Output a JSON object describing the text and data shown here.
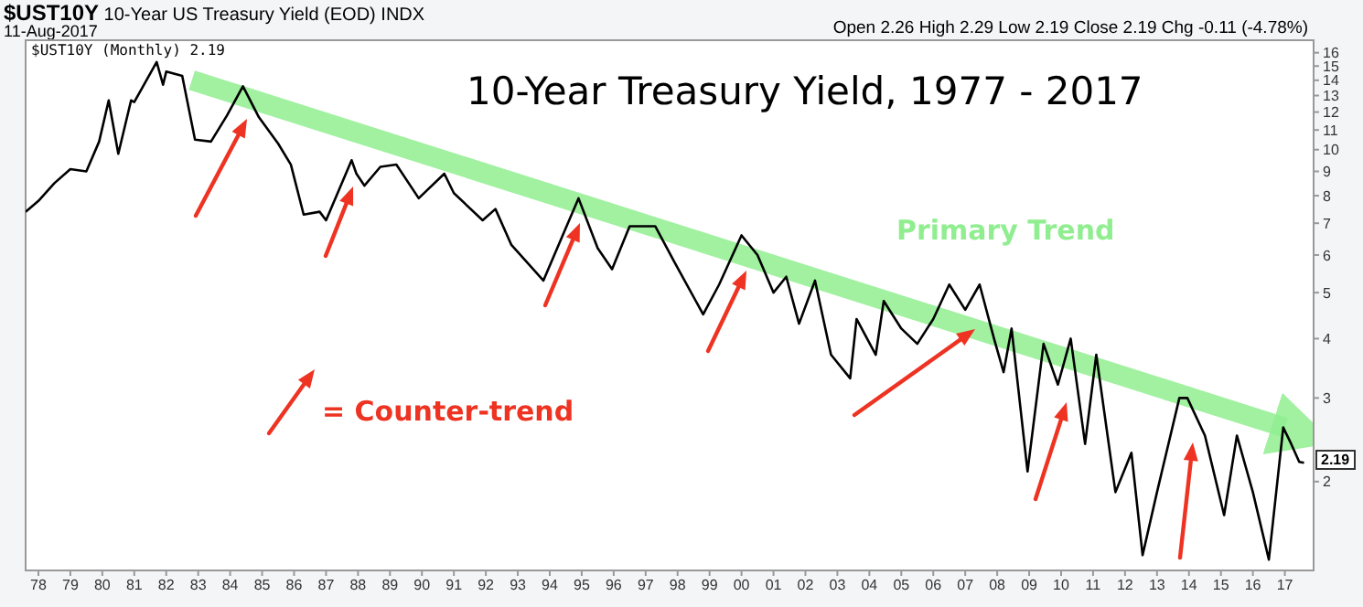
{
  "chart_data": {
    "type": "line",
    "title": "10-Year Treasury Yield, 1977 - 2017",
    "subtitle": "$UST10Y 10-Year US Treasury Yield (EOD) INDX",
    "annotations": [
      "11-Aug-2017",
      "Open 2.26 High 2.29 Low 2.19 Close 2.19 Chg -0.11 (-4.78%)",
      "$UST10Y (Monthly) 2.19",
      "= Counter-trend",
      {
        "text": "2.19",
        "y": 2.19
      }
    ],
    "log": "y",
    "xlim": [
      1977.6,
      2017.9
    ],
    "ylim": [
      1.3,
      17
    ],
    "xticks": [
      {
        "value": 1978,
        "label": "78"
      },
      {
        "value": 1979,
        "label": "79"
      },
      {
        "value": 1980,
        "label": "80"
      },
      {
        "value": 1981,
        "label": "81"
      },
      {
        "value": 1982,
        "label": "82"
      },
      {
        "value": 1983,
        "label": "83"
      },
      {
        "value": 1984,
        "label": "84"
      },
      {
        "value": 1985,
        "label": "85"
      },
      {
        "value": 1986,
        "label": "86"
      },
      {
        "value": 1987,
        "label": "87"
      },
      {
        "value": 1988,
        "label": "88"
      },
      {
        "value": 1989,
        "label": "89"
      },
      {
        "value": 1990,
        "label": "90"
      },
      {
        "value": 1991,
        "label": "91"
      },
      {
        "value": 1992,
        "label": "92"
      },
      {
        "value": 1993,
        "label": "93"
      },
      {
        "value": 1994,
        "label": "94"
      },
      {
        "value": 1995,
        "label": "95"
      },
      {
        "value": 1996,
        "label": "96"
      },
      {
        "value": 1997,
        "label": "97"
      },
      {
        "value": 1998,
        "label": "98"
      },
      {
        "value": 1999,
        "label": "99"
      },
      {
        "value": 2000,
        "label": "00"
      },
      {
        "value": 2001,
        "label": "01"
      },
      {
        "value": 2002,
        "label": "02"
      },
      {
        "value": 2003,
        "label": "03"
      },
      {
        "value": 2004,
        "label": "04"
      },
      {
        "value": 2005,
        "label": "05"
      },
      {
        "value": 2006,
        "label": "06"
      },
      {
        "value": 2007,
        "label": "07"
      },
      {
        "value": 2008,
        "label": "08"
      },
      {
        "value": 2009,
        "label": "09"
      },
      {
        "value": 2010,
        "label": "10"
      },
      {
        "value": 2011,
        "label": "11"
      },
      {
        "value": 2012,
        "label": "12"
      },
      {
        "value": 2013,
        "label": "13"
      },
      {
        "value": 2014,
        "label": "14"
      },
      {
        "value": 2015,
        "label": "15"
      },
      {
        "value": 2016,
        "label": "16"
      },
      {
        "value": 2017,
        "label": "17"
      }
    ],
    "yticks": [
      2,
      3,
      4,
      5,
      6,
      7,
      8,
      9,
      10,
      11,
      12,
      13,
      14,
      15,
      16
    ],
    "series": [
      {
        "color": "#000000",
        "x": [
          1977.6,
          1978.0,
          1978.5,
          1979.0,
          1979.5,
          1979.9,
          1980.2,
          1980.5,
          1980.9,
          1981.0,
          1981.7,
          1981.9,
          1982.0,
          1982.5,
          1982.9,
          1983.4,
          1983.9,
          1984.4,
          1984.9,
          1985.5,
          1985.9,
          1986.3,
          1986.8,
          1987.0,
          1987.8,
          1987.95,
          1988.2,
          1988.7,
          1989.2,
          1989.9,
          1990.7,
          1991.0,
          1991.9,
          1992.3,
          1992.8,
          1993.8,
          1994.9,
          1995.5,
          1995.95,
          1996.5,
          1997.3,
          1997.9,
          1998.8,
          1999.3,
          2000.0,
          2000.5,
          2001.0,
          2001.4,
          2001.8,
          2002.3,
          2002.8,
          2003.4,
          2003.6,
          2004.2,
          2004.45,
          2005.0,
          2005.5,
          2006.0,
          2006.5,
          2007.0,
          2007.45,
          2007.9,
          2008.2,
          2008.45,
          2008.95,
          2009.45,
          2009.9,
          2010.3,
          2010.75,
          2011.1,
          2011.7,
          2012.2,
          2012.55,
          2013.0,
          2013.7,
          2013.95,
          2014.5,
          2015.1,
          2015.5,
          2016.0,
          2016.5,
          2016.95,
          2017.2,
          2017.45,
          2017.6
        ],
        "values": [
          7.4,
          7.8,
          8.5,
          9.1,
          9.0,
          10.4,
          12.7,
          9.8,
          12.7,
          12.6,
          15.3,
          13.7,
          14.6,
          14.3,
          10.5,
          10.4,
          11.8,
          13.6,
          11.7,
          10.3,
          9.3,
          7.3,
          7.4,
          7.1,
          9.5,
          8.9,
          8.4,
          9.2,
          9.3,
          7.9,
          8.9,
          8.1,
          7.1,
          7.5,
          6.3,
          5.3,
          7.9,
          6.2,
          5.6,
          6.9,
          6.9,
          5.8,
          4.5,
          5.2,
          6.6,
          6.0,
          5.0,
          5.4,
          4.3,
          5.3,
          3.7,
          3.3,
          4.4,
          3.7,
          4.8,
          4.2,
          3.9,
          4.4,
          5.2,
          4.6,
          5.2,
          4.0,
          3.4,
          4.2,
          2.1,
          3.9,
          3.2,
          4.0,
          2.4,
          3.7,
          1.9,
          2.3,
          1.4,
          1.9,
          3.0,
          3.0,
          2.5,
          1.7,
          2.5,
          1.9,
          1.37,
          2.6,
          2.4,
          2.2,
          2.19
        ]
      },
      {
        "name": "Primary Trend",
        "color": "#90ee90",
        "x": [
          1982.8,
          2017.0
        ],
        "values": [
          14,
          2.6
        ]
      }
    ]
  }
}
